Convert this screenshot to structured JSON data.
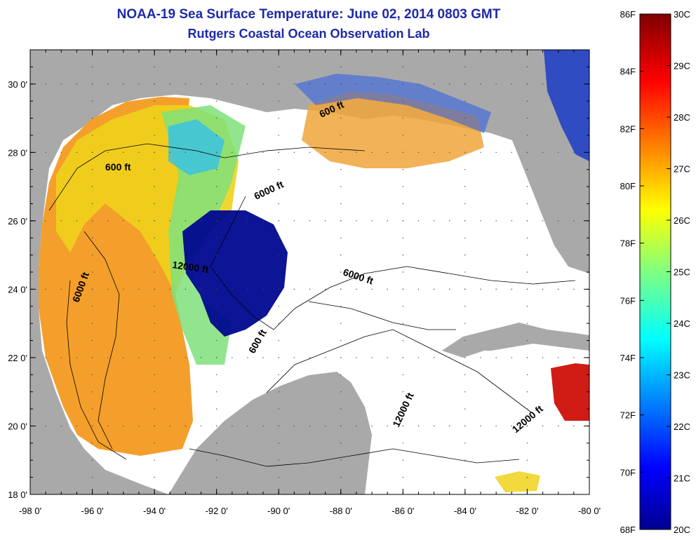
{
  "title": "NOAA-19 Sea Surface Temperature:  June 02, 2014 0803 GMT",
  "subtitle": "Rutgers Coastal Ocean Observation Lab",
  "map": {
    "lon_ticks": [
      "-98 0'",
      "-96 0'",
      "-94 0'",
      "-92 0'",
      "-90 0'",
      "-88 0'",
      "-86 0'",
      "-84 0'",
      "-82 0'",
      "-80 0'"
    ],
    "lat_ticks": [
      "30 0'",
      "28 0'",
      "26 0'",
      "24 0'",
      "22 0'",
      "20 0'",
      "18 0'"
    ],
    "lon_range": [
      -98,
      -80
    ],
    "lat_range": [
      18,
      31
    ],
    "contour_labels": [
      "600 ft",
      "600 ft",
      "6000 ft",
      "12000 ft",
      "6000 ft",
      "6000 ft",
      "600 ft",
      "12000 ft",
      "12000 ft"
    ],
    "colors": {
      "land": "#a9a9a9",
      "no_data": "#ffffff",
      "title": "#1f2aa6"
    }
  },
  "colorbar": {
    "fahrenheit_labels": [
      "86F",
      "84F",
      "82F",
      "80F",
      "78F",
      "76F",
      "74F",
      "72F",
      "70F",
      "68F"
    ],
    "celsius_labels": [
      "30C",
      "29C",
      "28C",
      "27C",
      "26C",
      "25C",
      "24C",
      "23C",
      "22C",
      "21C",
      "20C"
    ],
    "range_c": [
      20,
      30
    ],
    "colormap": "jet"
  }
}
